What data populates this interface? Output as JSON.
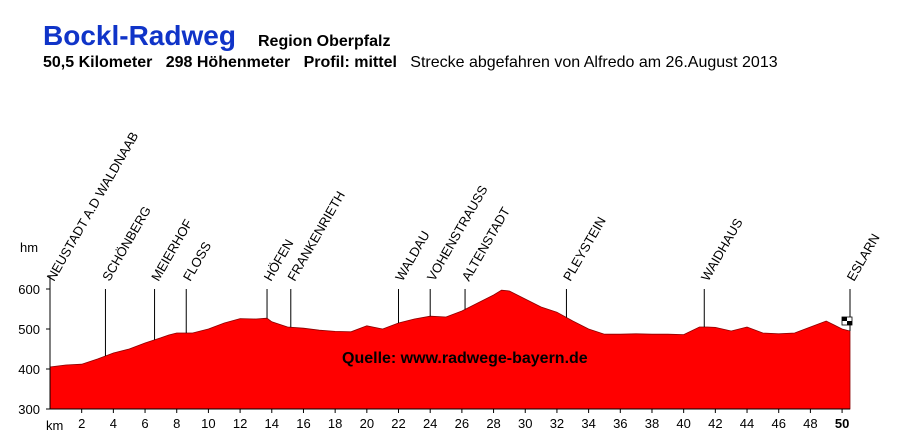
{
  "header": {
    "title": "Bockl-Radweg",
    "region": "Region Oberpfalz",
    "distance": "50,5 Kilometer",
    "climb": "298 Höhenmeter",
    "profile": "Profil: mittel",
    "note": "Strecke abgefahren von Alfredo am 26.August 2013"
  },
  "chart_data": {
    "type": "area",
    "ylabel": "hm",
    "xlabel": "km",
    "xlim": [
      0,
      50.5
    ],
    "ylim": [
      300,
      600
    ],
    "yticks": [
      300,
      400,
      500,
      600
    ],
    "xticks": [
      2,
      4,
      6,
      8,
      10,
      12,
      14,
      16,
      18,
      20,
      22,
      24,
      26,
      28,
      30,
      32,
      34,
      36,
      38,
      40,
      42,
      44,
      46,
      48,
      50
    ],
    "x": [
      0,
      1,
      2,
      3,
      4,
      5,
      6,
      7,
      7.5,
      8,
      8.5,
      9,
      10,
      11,
      12,
      13,
      13.7,
      14,
      15,
      16,
      17,
      18,
      19,
      20,
      21,
      22,
      23,
      24,
      25,
      26,
      27,
      28,
      28.5,
      29,
      30,
      31,
      32,
      33,
      34,
      35,
      36,
      37,
      38,
      39,
      40,
      41,
      41.5,
      42,
      43,
      44,
      45,
      46,
      47,
      48,
      49,
      49.5,
      50,
      50.5
    ],
    "elevation": [
      405,
      410,
      412,
      425,
      440,
      450,
      465,
      478,
      485,
      490,
      490,
      490,
      500,
      515,
      526,
      525,
      527,
      518,
      505,
      502,
      497,
      494,
      493,
      508,
      500,
      515,
      525,
      532,
      530,
      545,
      565,
      585,
      597,
      595,
      575,
      555,
      542,
      520,
      500,
      487,
      487,
      488,
      487,
      487,
      486,
      505,
      505,
      504,
      495,
      505,
      490,
      488,
      490,
      505,
      520,
      510,
      500,
      495
    ],
    "locations": [
      {
        "name": "NEUSTADT A.D WALDNAAB",
        "km": 0
      },
      {
        "name": "SCHÖNBERG",
        "km": 3.5
      },
      {
        "name": "MEIERHOF",
        "km": 6.6
      },
      {
        "name": "FLOSS",
        "km": 8.6
      },
      {
        "name": "HÖFEN",
        "km": 13.7
      },
      {
        "name": "FRANKENRIETH",
        "km": 15.2
      },
      {
        "name": "WALDAU",
        "km": 22
      },
      {
        "name": "VOHENSTRAUSS",
        "km": 24
      },
      {
        "name": "ALTENSTADT",
        "km": 26.2
      },
      {
        "name": "PLEYSTEIN",
        "km": 32.6
      },
      {
        "name": "WAIDHAUS",
        "km": 41.3
      },
      {
        "name": "ESLARN",
        "km": 50.5
      }
    ],
    "fill_color": "#ff0000",
    "source_label": "Quelle:  www.radwege-bayern.de"
  }
}
